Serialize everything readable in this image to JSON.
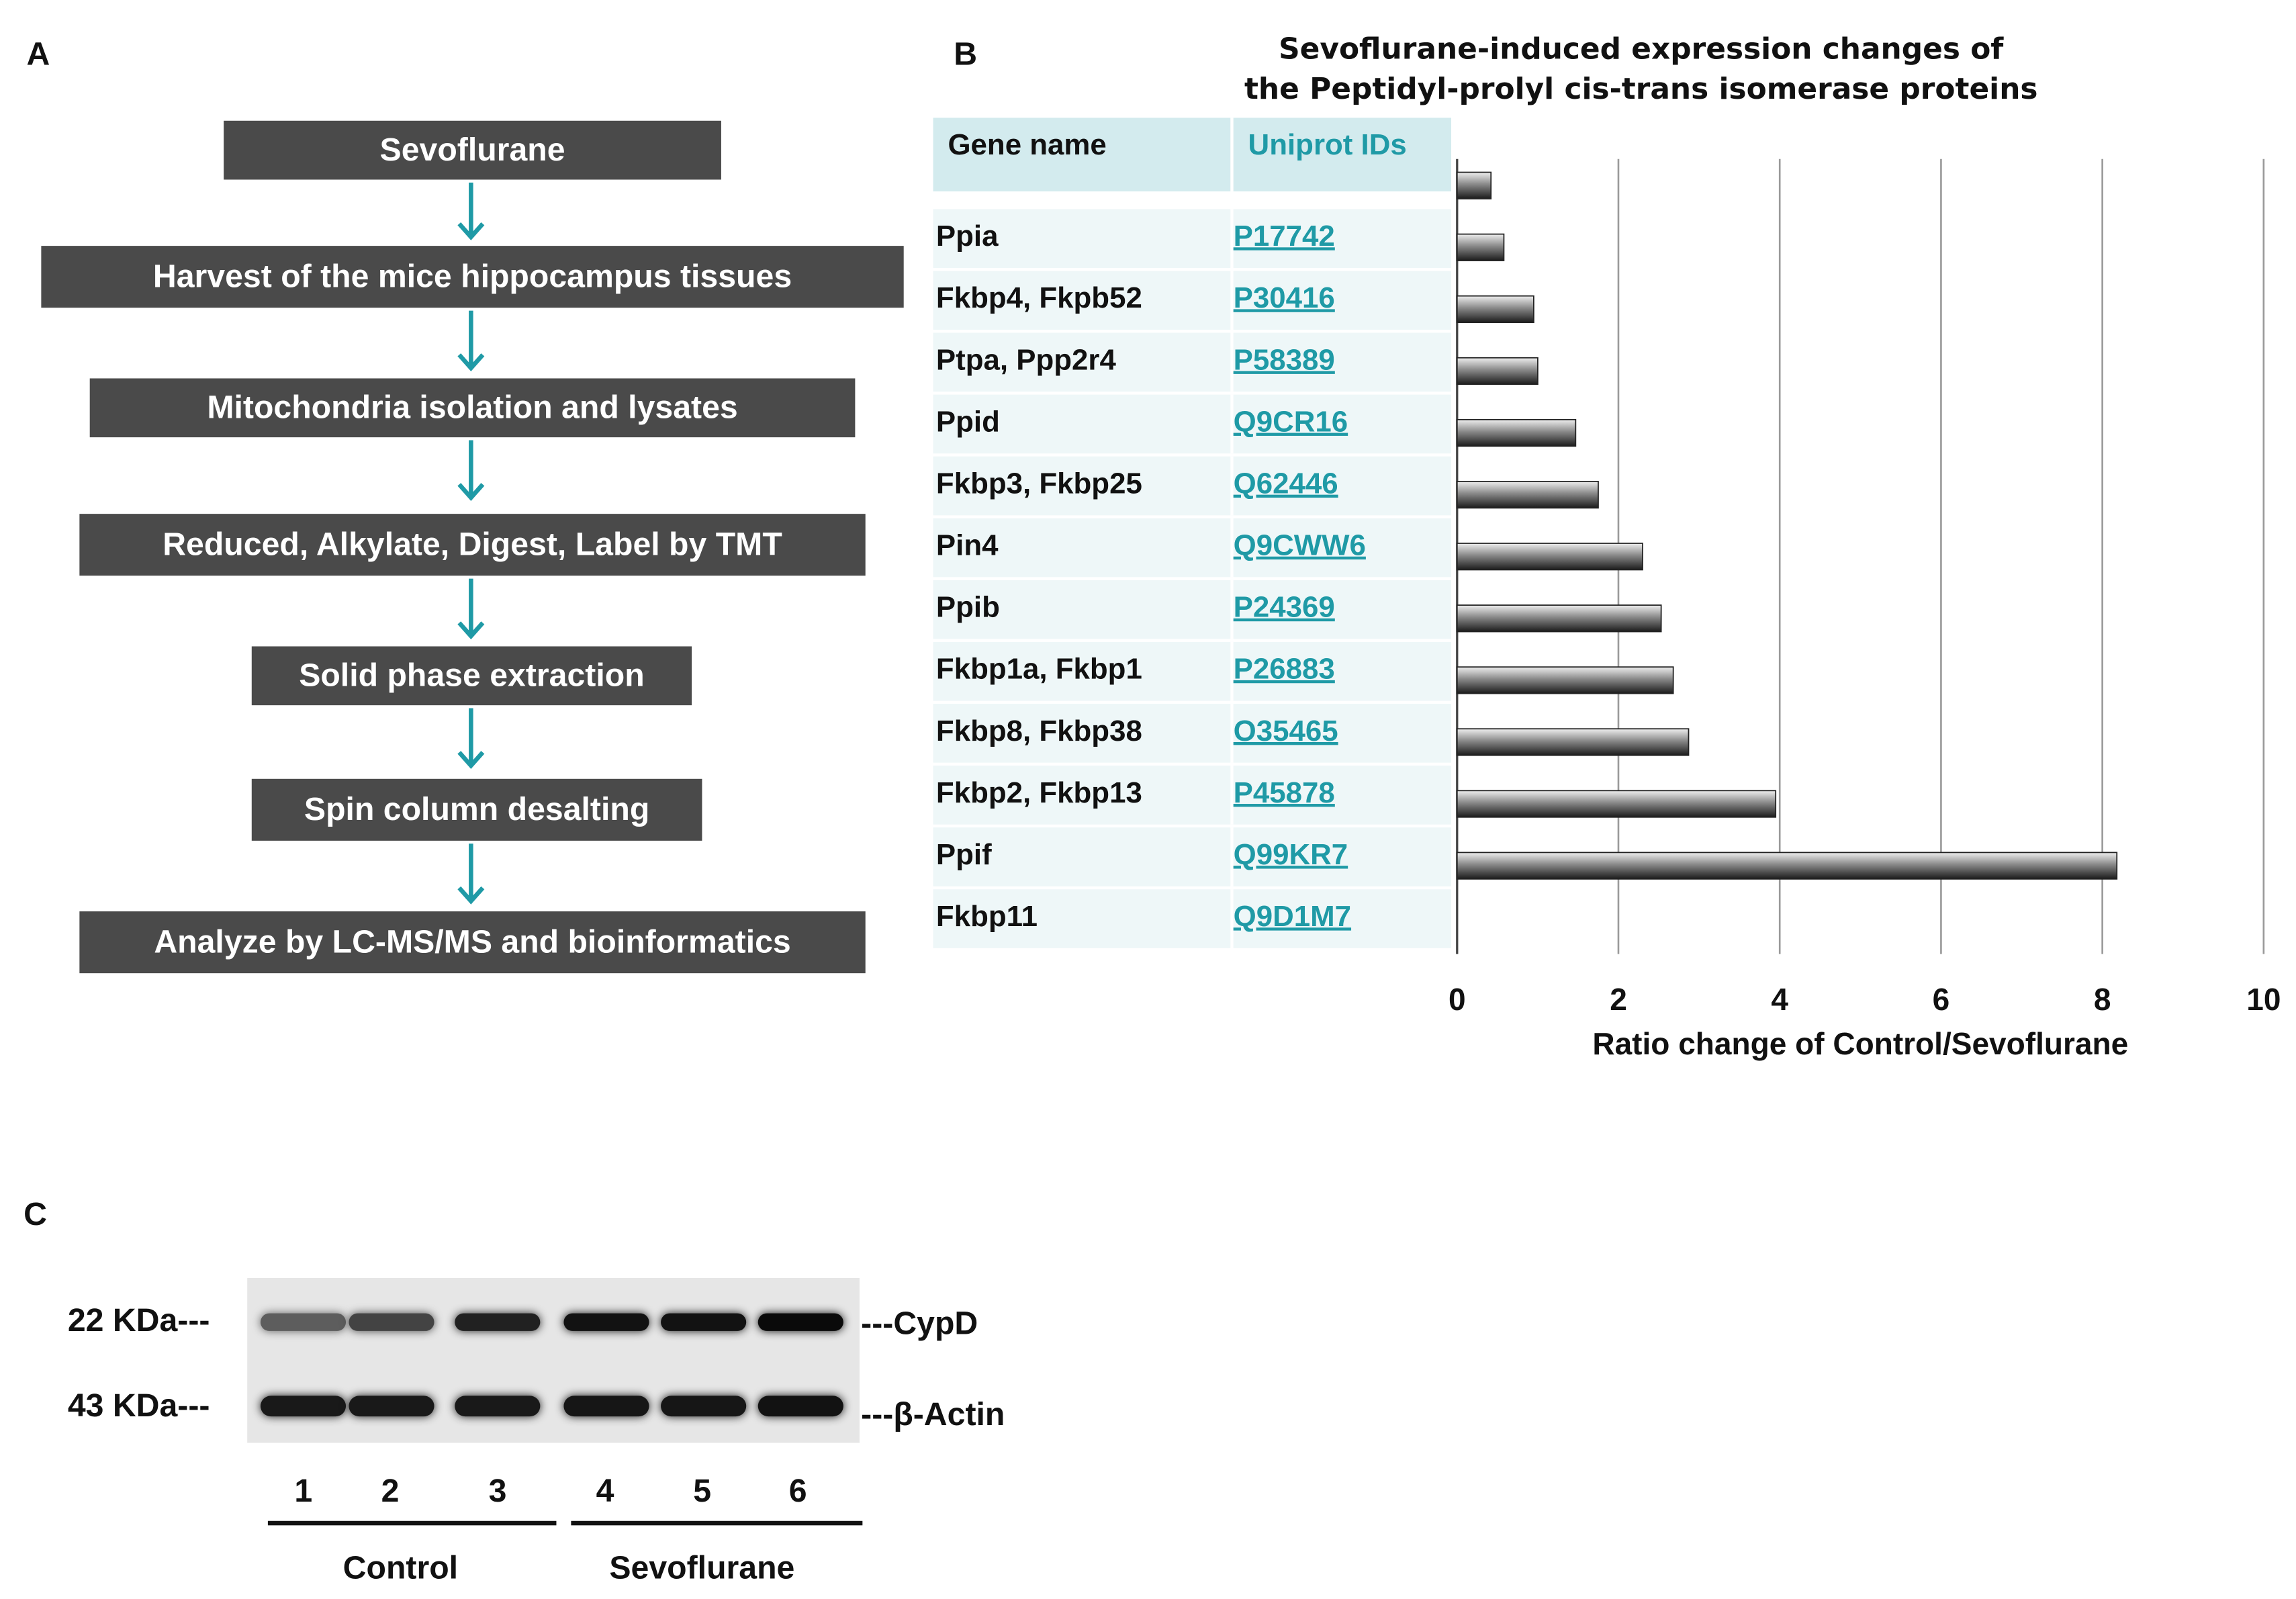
{
  "panels": {
    "a_label": "A",
    "b_label": "B",
    "c_label": "C"
  },
  "flowchart": {
    "steps": [
      "Sevoflurane",
      "Harvest of the mice hippocampus tissues",
      "Mitochondria isolation and lysates",
      "Reduced, Alkylate, Digest, Label by TMT",
      "Solid phase extraction",
      "Spin column desalting",
      "Analyze by LC-MS/MS and bioinformatics"
    ],
    "box_color": "#4a4a4a",
    "arrow_color": "#1f9aa6"
  },
  "gene_table": {
    "header_gene": "Gene name",
    "header_id": "Uniprot IDs",
    "rows": [
      {
        "gene": "Ppia",
        "id": "P17742"
      },
      {
        "gene": "Fkbp4, Fkpb52",
        "id": "P30416"
      },
      {
        "gene": "Ptpa, Ppp2r4",
        "id": "P58389"
      },
      {
        "gene": "Ppid",
        "id": "Q9CR16"
      },
      {
        "gene": "Fkbp3, Fkbp25",
        "id": "Q62446"
      },
      {
        "gene": "Pin4",
        "id": "Q9CWW6"
      },
      {
        "gene": "Ppib",
        "id": "P24369"
      },
      {
        "gene": "Fkbp1a, Fkbp1",
        "id": "P26883"
      },
      {
        "gene": "Fkbp8, Fkbp38",
        "id": "O35465"
      },
      {
        "gene": "Fkbp2, Fkbp13",
        "id": "P45878"
      },
      {
        "gene": "Ppif",
        "id": "Q99KR7"
      },
      {
        "gene": "Fkbp11",
        "id": "Q9D1M7"
      }
    ],
    "id_color": "#1f9aa6"
  },
  "chart_data": {
    "type": "bar",
    "orientation": "horizontal",
    "title_line1": "Sevoflurane-induced expression changes of",
    "title_line2": "the Peptidyl-prolyl cis-trans isomerase proteins",
    "xlabel": "Ratio change of Control/Sevoflurane",
    "xlim": [
      0,
      10
    ],
    "xticks": [
      "0",
      "2",
      "4",
      "6",
      "8",
      "10"
    ],
    "grid": true,
    "values": [
      0.42,
      0.58,
      0.95,
      1.0,
      1.47,
      1.75,
      2.3,
      2.53,
      2.68,
      2.87,
      3.95,
      8.18
    ],
    "bar_color": "#6e6e6e"
  },
  "western_blot": {
    "mw_top": "22 KDa---",
    "mw_bottom": "43 KDa---",
    "label_top": "---CypD",
    "label_bottom": "---β-Actin",
    "lanes": [
      "1",
      "2",
      "3",
      "4",
      "5",
      "6"
    ],
    "group_control": "Control",
    "group_sevo": "Sevoflurane",
    "cypd_intensity": [
      0.45,
      0.62,
      0.85,
      0.95,
      0.95,
      1.0
    ],
    "actin_intensity": [
      0.9,
      0.9,
      0.9,
      0.92,
      0.92,
      0.95
    ]
  }
}
